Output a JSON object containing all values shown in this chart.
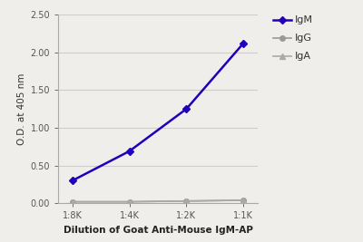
{
  "x_labels": [
    "1:8K",
    "1:4K",
    "1:2K",
    "1:1K"
  ],
  "x_values": [
    0,
    1,
    2,
    3
  ],
  "IgM_values": [
    0.3,
    0.69,
    1.25,
    2.12
  ],
  "IgG_values": [
    0.02,
    0.02,
    0.03,
    0.04
  ],
  "IgA_values": [
    0.02,
    0.02,
    0.03,
    0.04
  ],
  "IgM_color": "#2200bb",
  "IgG_color": "#999999",
  "IgA_color": "#aaaaaa",
  "bg_color": "#f0eeea",
  "plot_bg_color": "#f0eeea",
  "grid_color": "#d0cdc8",
  "ylabel": "O.D. at 405 nm",
  "xlabel": "Dilution of Goat Anti-Mouse IgM-AP",
  "ylim": [
    0,
    2.5
  ],
  "yticks": [
    0.0,
    0.5,
    1.0,
    1.5,
    2.0,
    2.5
  ],
  "axis_fontsize": 7.5,
  "tick_fontsize": 7,
  "legend_fontsize": 8
}
